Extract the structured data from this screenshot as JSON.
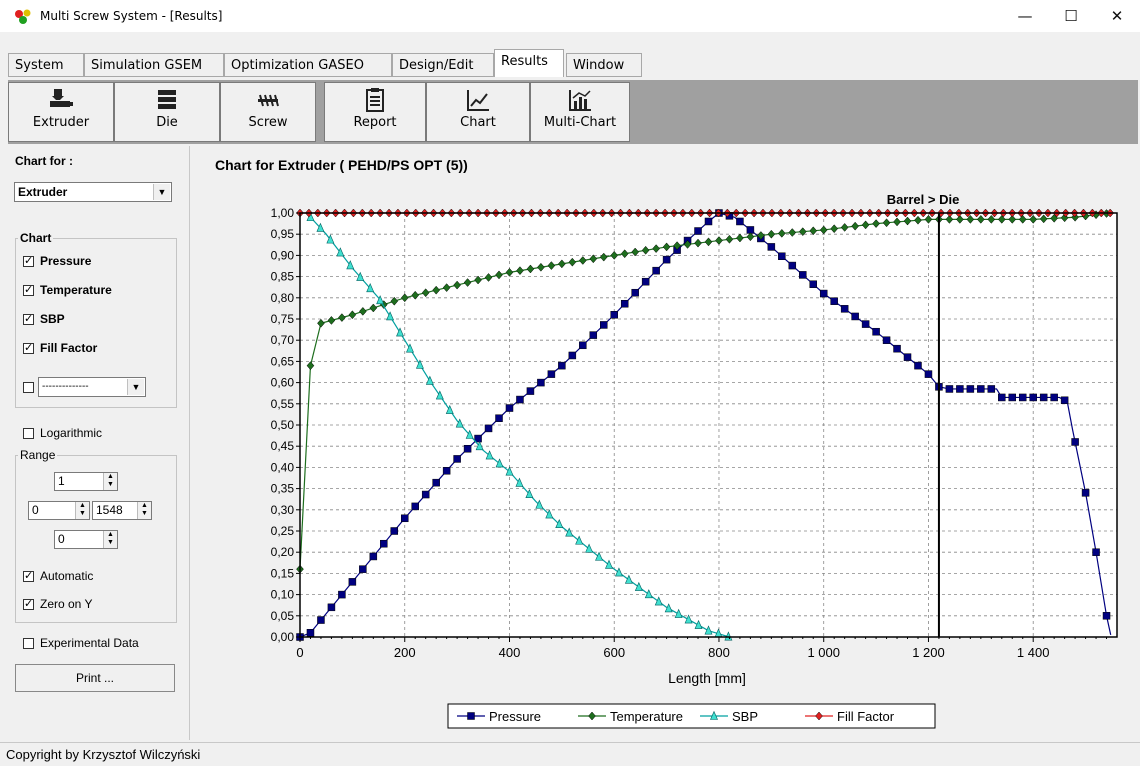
{
  "window": {
    "title": "Multi Screw System - [Results]",
    "minimize": "—",
    "maximize": "☐",
    "close": "✕"
  },
  "tabs": [
    "System",
    "Simulation GSEM",
    "Optimization GASEO",
    "Design/Edit",
    "Results",
    "Window"
  ],
  "active_tab": "Results",
  "toolbar": [
    {
      "label": "Extruder",
      "icon": "extruder-icon"
    },
    {
      "label": "Die",
      "icon": "die-icon"
    },
    {
      "label": "Screw",
      "icon": "screw-icon"
    },
    {
      "label": "Report",
      "icon": "report-icon"
    },
    {
      "label": "Chart",
      "icon": "chart-icon"
    },
    {
      "label": "Multi-Chart",
      "icon": "multi-chart-icon"
    }
  ],
  "panel": {
    "chart_for_label": "Chart for :",
    "chart_for_value": "Extruder",
    "chart_group": "Chart",
    "checks": [
      {
        "label": "Pressure",
        "checked": true
      },
      {
        "label": "Temperature",
        "checked": true
      },
      {
        "label": "SBP",
        "checked": true
      },
      {
        "label": "Fill Factor",
        "checked": true
      }
    ],
    "extra_select": "--------------",
    "logarithmic": "Logarithmic",
    "range_group": "Range",
    "range_top": "1",
    "range_left": "0",
    "range_right": "1548",
    "range_bottom": "0",
    "automatic": "Automatic",
    "zero_on_y": "Zero on Y",
    "experimental": "Experimental Data",
    "print": "Print ..."
  },
  "status": "Copyright by Krzysztof Wilczyński",
  "chart_data": {
    "type": "line",
    "title": "Chart for Extruder ( PEHD/PS OPT (5))",
    "annotation": "Barrel > Die",
    "marker_x": 1220,
    "xlabel": "Length [mm]",
    "ylabel": "",
    "xlim": [
      0,
      1560
    ],
    "ylim": [
      0,
      1.0
    ],
    "x_ticks": [
      "0",
      "200",
      "400",
      "600",
      "800",
      "1 000",
      "1 200",
      "1 400"
    ],
    "y_ticks": [
      "0,00",
      "0,05",
      "0,10",
      "0,15",
      "0,20",
      "0,25",
      "0,30",
      "0,35",
      "0,40",
      "0,45",
      "0,50",
      "0,55",
      "0,60",
      "0,65",
      "0,70",
      "0,75",
      "0,80",
      "0,85",
      "0,90",
      "0,95",
      "1,00"
    ],
    "grid": true,
    "legend_position": "bottom",
    "series": [
      {
        "name": "Pressure",
        "color": "#000080",
        "marker": "square",
        "points": [
          [
            0,
            0
          ],
          [
            20,
            0.01
          ],
          [
            40,
            0.04
          ],
          [
            100,
            0.13
          ],
          [
            200,
            0.28
          ],
          [
            300,
            0.42
          ],
          [
            400,
            0.54
          ],
          [
            500,
            0.64
          ],
          [
            600,
            0.76
          ],
          [
            700,
            0.89
          ],
          [
            780,
            0.98
          ],
          [
            800,
            1.0
          ],
          [
            830,
            0.99
          ],
          [
            900,
            0.92
          ],
          [
            1000,
            0.81
          ],
          [
            1100,
            0.72
          ],
          [
            1200,
            0.62
          ],
          [
            1220,
            0.59
          ],
          [
            1240,
            0.585
          ],
          [
            1330,
            0.585
          ],
          [
            1340,
            0.565
          ],
          [
            1450,
            0.565
          ],
          [
            1465,
            0.555
          ],
          [
            1475,
            0.49
          ],
          [
            1500,
            0.34
          ],
          [
            1520,
            0.2
          ],
          [
            1540,
            0.05
          ],
          [
            1548,
            0.005
          ]
        ]
      },
      {
        "name": "Temperature",
        "color": "#1e6e1e",
        "marker": "diamond",
        "points": [
          [
            0,
            0.16
          ],
          [
            20,
            0.64
          ],
          [
            40,
            0.74
          ],
          [
            100,
            0.76
          ],
          [
            200,
            0.8
          ],
          [
            300,
            0.83
          ],
          [
            400,
            0.86
          ],
          [
            500,
            0.88
          ],
          [
            600,
            0.9
          ],
          [
            700,
            0.92
          ],
          [
            800,
            0.935
          ],
          [
            900,
            0.95
          ],
          [
            1000,
            0.96
          ],
          [
            1100,
            0.975
          ],
          [
            1200,
            0.985
          ],
          [
            1300,
            0.985
          ],
          [
            1400,
            0.985
          ],
          [
            1480,
            0.99
          ],
          [
            1548,
            1.0
          ]
        ]
      },
      {
        "name": "SBP",
        "color": "#008080",
        "marker": "triangle",
        "points": [
          [
            20,
            0.99
          ],
          [
            50,
            0.95
          ],
          [
            100,
            0.87
          ],
          [
            150,
            0.8
          ],
          [
            200,
            0.7
          ],
          [
            250,
            0.6
          ],
          [
            300,
            0.51
          ],
          [
            350,
            0.44
          ],
          [
            400,
            0.39
          ],
          [
            450,
            0.32
          ],
          [
            500,
            0.26
          ],
          [
            600,
            0.16
          ],
          [
            700,
            0.07
          ],
          [
            780,
            0.015
          ],
          [
            820,
            0.0
          ]
        ]
      },
      {
        "name": "Fill Factor",
        "color": "#e02020",
        "marker": "diamond",
        "points": [
          [
            0,
            1.0
          ],
          [
            1548,
            1.0
          ]
        ]
      }
    ]
  }
}
